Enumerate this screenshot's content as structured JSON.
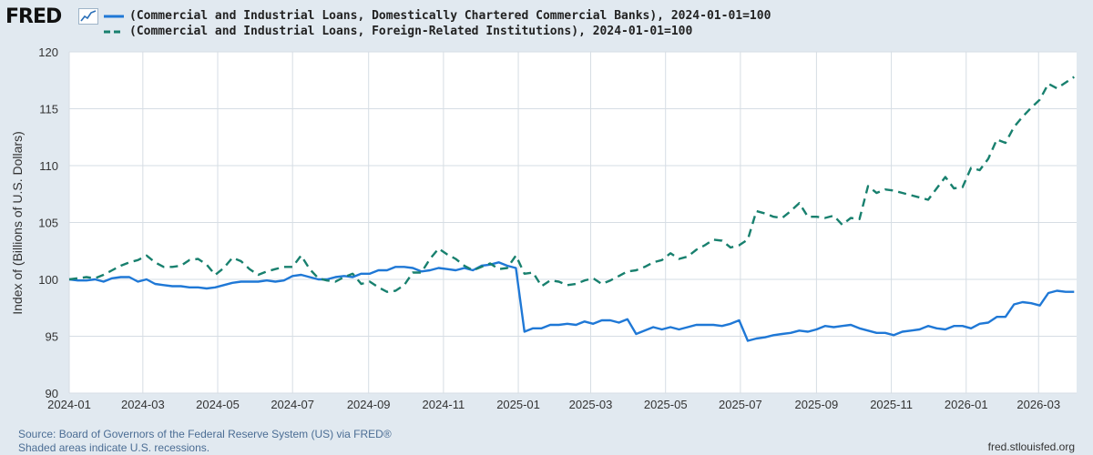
{
  "brand": {
    "name": "FRED"
  },
  "chart_data": {
    "type": "line",
    "title": "",
    "xlabel": "",
    "ylabel": "Index of (Billions of U.S. Dollars)",
    "ylim": [
      90,
      120
    ],
    "xlim": [
      "2024-01-01",
      "2026-04-01"
    ],
    "yticks": [
      "90",
      "95",
      "100",
      "105",
      "110",
      "115",
      "120"
    ],
    "xticks": [
      {
        "label": "2024-01",
        "date": "2024-01-01"
      },
      {
        "label": "2024-03",
        "date": "2024-03-01"
      },
      {
        "label": "2024-05",
        "date": "2024-05-01"
      },
      {
        "label": "2024-07",
        "date": "2024-07-01"
      },
      {
        "label": "2024-09",
        "date": "2024-09-01"
      },
      {
        "label": "2024-11",
        "date": "2024-11-01"
      },
      {
        "label": "2025-01",
        "date": "2025-01-01"
      },
      {
        "label": "2025-03",
        "date": "2025-03-01"
      },
      {
        "label": "2025-05",
        "date": "2025-05-01"
      },
      {
        "label": "2025-07",
        "date": "2025-07-01"
      },
      {
        "label": "2025-09",
        "date": "2025-09-01"
      },
      {
        "label": "2025-11",
        "date": "2025-11-01"
      },
      {
        "label": "2026-01",
        "date": "2026-01-01"
      },
      {
        "label": "2026-03",
        "date": "2026-03-01"
      }
    ],
    "grid": true,
    "legend_position": "top",
    "series": [
      {
        "name": "(Commercial and Industrial Loans, Domestically Chartered Commercial Banks), 2024-01-01=100",
        "color": "#1f78d6",
        "style": "solid",
        "points": [
          [
            "2024-01-01",
            100.0
          ],
          [
            "2024-01-08",
            99.9
          ],
          [
            "2024-01-15",
            99.9
          ],
          [
            "2024-01-22",
            100.0
          ],
          [
            "2024-01-29",
            99.8
          ],
          [
            "2024-02-05",
            100.1
          ],
          [
            "2024-02-12",
            100.2
          ],
          [
            "2024-02-19",
            100.2
          ],
          [
            "2024-02-26",
            99.8
          ],
          [
            "2024-03-04",
            100.0
          ],
          [
            "2024-03-11",
            99.6
          ],
          [
            "2024-03-18",
            99.5
          ],
          [
            "2024-03-25",
            99.4
          ],
          [
            "2024-04-01",
            99.4
          ],
          [
            "2024-04-08",
            99.3
          ],
          [
            "2024-04-15",
            99.3
          ],
          [
            "2024-04-22",
            99.2
          ],
          [
            "2024-04-29",
            99.3
          ],
          [
            "2024-05-06",
            99.5
          ],
          [
            "2024-05-13",
            99.7
          ],
          [
            "2024-05-20",
            99.8
          ],
          [
            "2024-05-27",
            99.8
          ],
          [
            "2024-06-03",
            99.8
          ],
          [
            "2024-06-10",
            99.9
          ],
          [
            "2024-06-17",
            99.8
          ],
          [
            "2024-06-24",
            99.9
          ],
          [
            "2024-07-01",
            100.3
          ],
          [
            "2024-07-08",
            100.4
          ],
          [
            "2024-07-15",
            100.2
          ],
          [
            "2024-07-22",
            100.0
          ],
          [
            "2024-07-29",
            100.0
          ],
          [
            "2024-08-05",
            100.2
          ],
          [
            "2024-08-12",
            100.3
          ],
          [
            "2024-08-19",
            100.2
          ],
          [
            "2024-08-26",
            100.5
          ],
          [
            "2024-09-02",
            100.5
          ],
          [
            "2024-09-09",
            100.8
          ],
          [
            "2024-09-16",
            100.8
          ],
          [
            "2024-09-23",
            101.1
          ],
          [
            "2024-09-30",
            101.1
          ],
          [
            "2024-10-07",
            101.0
          ],
          [
            "2024-10-14",
            100.7
          ],
          [
            "2024-10-21",
            100.8
          ],
          [
            "2024-10-28",
            101.0
          ],
          [
            "2024-11-04",
            100.9
          ],
          [
            "2024-11-11",
            100.8
          ],
          [
            "2024-11-18",
            101.0
          ],
          [
            "2024-11-25",
            100.8
          ],
          [
            "2024-12-02",
            101.2
          ],
          [
            "2024-12-09",
            101.3
          ],
          [
            "2024-12-16",
            101.5
          ],
          [
            "2024-12-23",
            101.2
          ],
          [
            "2024-12-30",
            101.0
          ],
          [
            "2025-01-06",
            95.4
          ],
          [
            "2025-01-13",
            95.7
          ],
          [
            "2025-01-20",
            95.7
          ],
          [
            "2025-01-27",
            96.0
          ],
          [
            "2025-02-03",
            96.0
          ],
          [
            "2025-02-10",
            96.1
          ],
          [
            "2025-02-17",
            96.0
          ],
          [
            "2025-02-24",
            96.3
          ],
          [
            "2025-03-03",
            96.1
          ],
          [
            "2025-03-10",
            96.4
          ],
          [
            "2025-03-17",
            96.4
          ],
          [
            "2025-03-24",
            96.2
          ],
          [
            "2025-03-31",
            96.5
          ],
          [
            "2025-04-07",
            95.2
          ],
          [
            "2025-04-14",
            95.5
          ],
          [
            "2025-04-21",
            95.8
          ],
          [
            "2025-04-28",
            95.6
          ],
          [
            "2025-05-05",
            95.8
          ],
          [
            "2025-05-12",
            95.6
          ],
          [
            "2025-05-19",
            95.8
          ],
          [
            "2025-05-26",
            96.0
          ],
          [
            "2025-06-02",
            96.0
          ],
          [
            "2025-06-09",
            96.0
          ],
          [
            "2025-06-16",
            95.9
          ],
          [
            "2025-06-23",
            96.1
          ],
          [
            "2025-06-30",
            96.4
          ],
          [
            "2025-07-07",
            94.6
          ],
          [
            "2025-07-14",
            94.8
          ],
          [
            "2025-07-21",
            94.9
          ],
          [
            "2025-07-28",
            95.1
          ],
          [
            "2025-08-04",
            95.2
          ],
          [
            "2025-08-11",
            95.3
          ],
          [
            "2025-08-18",
            95.5
          ],
          [
            "2025-08-25",
            95.4
          ],
          [
            "2025-09-01",
            95.6
          ],
          [
            "2025-09-08",
            95.9
          ],
          [
            "2025-09-15",
            95.8
          ],
          [
            "2025-09-22",
            95.9
          ],
          [
            "2025-09-29",
            96.0
          ],
          [
            "2025-10-06",
            95.7
          ],
          [
            "2025-10-13",
            95.5
          ],
          [
            "2025-10-20",
            95.3
          ],
          [
            "2025-10-27",
            95.3
          ],
          [
            "2025-11-03",
            95.1
          ],
          [
            "2025-11-10",
            95.4
          ],
          [
            "2025-11-17",
            95.5
          ],
          [
            "2025-11-24",
            95.6
          ],
          [
            "2025-12-01",
            95.9
          ],
          [
            "2025-12-08",
            95.7
          ],
          [
            "2025-12-15",
            95.6
          ],
          [
            "2025-12-22",
            95.9
          ],
          [
            "2025-12-29",
            95.9
          ],
          [
            "2026-01-05",
            95.7
          ],
          [
            "2026-01-12",
            96.1
          ],
          [
            "2026-01-19",
            96.2
          ],
          [
            "2026-01-26",
            96.7
          ],
          [
            "2026-02-02",
            96.7
          ],
          [
            "2026-02-09",
            97.8
          ],
          [
            "2026-02-16",
            98.0
          ],
          [
            "2026-02-23",
            97.9
          ],
          [
            "2026-03-02",
            97.7
          ],
          [
            "2026-03-09",
            98.8
          ],
          [
            "2026-03-16",
            99.0
          ],
          [
            "2026-03-23",
            98.9
          ],
          [
            "2026-03-30",
            98.9
          ]
        ]
      },
      {
        "name": "(Commercial and Industrial Loans, Foreign-Related Institutions), 2024-01-01=100",
        "color": "#18806e",
        "style": "dashed",
        "points": [
          [
            "2024-01-01",
            100.0
          ],
          [
            "2024-01-08",
            100.1
          ],
          [
            "2024-01-15",
            100.2
          ],
          [
            "2024-01-22",
            100.1
          ],
          [
            "2024-01-29",
            100.4
          ],
          [
            "2024-02-05",
            100.8
          ],
          [
            "2024-02-12",
            101.2
          ],
          [
            "2024-02-19",
            101.5
          ],
          [
            "2024-02-26",
            101.7
          ],
          [
            "2024-03-04",
            102.1
          ],
          [
            "2024-03-11",
            101.5
          ],
          [
            "2024-03-18",
            101.1
          ],
          [
            "2024-03-25",
            101.1
          ],
          [
            "2024-04-01",
            101.2
          ],
          [
            "2024-04-08",
            101.7
          ],
          [
            "2024-04-15",
            101.8
          ],
          [
            "2024-04-22",
            101.3
          ],
          [
            "2024-04-29",
            100.4
          ],
          [
            "2024-05-06",
            101.0
          ],
          [
            "2024-05-13",
            101.9
          ],
          [
            "2024-05-20",
            101.6
          ],
          [
            "2024-05-27",
            100.9
          ],
          [
            "2024-06-03",
            100.4
          ],
          [
            "2024-06-10",
            100.7
          ],
          [
            "2024-06-17",
            100.9
          ],
          [
            "2024-06-24",
            101.1
          ],
          [
            "2024-07-01",
            101.1
          ],
          [
            "2024-07-08",
            102.1
          ],
          [
            "2024-07-15",
            100.9
          ],
          [
            "2024-07-22",
            100.1
          ],
          [
            "2024-07-29",
            99.9
          ],
          [
            "2024-08-05",
            99.8
          ],
          [
            "2024-08-12",
            100.2
          ],
          [
            "2024-08-19",
            100.5
          ],
          [
            "2024-08-26",
            99.6
          ],
          [
            "2024-09-02",
            99.8
          ],
          [
            "2024-09-09",
            99.3
          ],
          [
            "2024-09-16",
            98.9
          ],
          [
            "2024-09-23",
            99.0
          ],
          [
            "2024-09-30",
            99.5
          ],
          [
            "2024-10-07",
            100.6
          ],
          [
            "2024-10-14",
            100.6
          ],
          [
            "2024-10-21",
            101.8
          ],
          [
            "2024-10-28",
            102.7
          ],
          [
            "2024-11-04",
            102.2
          ],
          [
            "2024-11-11",
            101.8
          ],
          [
            "2024-11-18",
            101.2
          ],
          [
            "2024-11-25",
            100.8
          ],
          [
            "2024-12-02",
            101.1
          ],
          [
            "2024-12-09",
            101.4
          ],
          [
            "2024-12-16",
            100.9
          ],
          [
            "2024-12-23",
            101.0
          ],
          [
            "2024-12-30",
            102.1
          ],
          [
            "2025-01-06",
            100.5
          ],
          [
            "2025-01-13",
            100.6
          ],
          [
            "2025-01-20",
            99.4
          ],
          [
            "2025-01-27",
            99.9
          ],
          [
            "2025-02-03",
            99.8
          ],
          [
            "2025-02-10",
            99.5
          ],
          [
            "2025-02-17",
            99.6
          ],
          [
            "2025-02-24",
            99.9
          ],
          [
            "2025-03-03",
            100.1
          ],
          [
            "2025-03-10",
            99.6
          ],
          [
            "2025-03-17",
            99.9
          ],
          [
            "2025-03-24",
            100.3
          ],
          [
            "2025-03-31",
            100.7
          ],
          [
            "2025-04-07",
            100.8
          ],
          [
            "2025-04-14",
            101.1
          ],
          [
            "2025-04-21",
            101.5
          ],
          [
            "2025-04-28",
            101.7
          ],
          [
            "2025-05-05",
            102.3
          ],
          [
            "2025-05-12",
            101.8
          ],
          [
            "2025-05-19",
            102.0
          ],
          [
            "2025-05-26",
            102.6
          ],
          [
            "2025-06-02",
            103.0
          ],
          [
            "2025-06-09",
            103.5
          ],
          [
            "2025-06-16",
            103.4
          ],
          [
            "2025-06-23",
            102.8
          ],
          [
            "2025-06-30",
            103.0
          ],
          [
            "2025-07-07",
            103.5
          ],
          [
            "2025-07-14",
            106.0
          ],
          [
            "2025-07-21",
            105.8
          ],
          [
            "2025-07-28",
            105.5
          ],
          [
            "2025-08-04",
            105.4
          ],
          [
            "2025-08-11",
            106.0
          ],
          [
            "2025-08-18",
            106.7
          ],
          [
            "2025-08-25",
            105.5
          ],
          [
            "2025-09-01",
            105.5
          ],
          [
            "2025-09-08",
            105.4
          ],
          [
            "2025-09-15",
            105.6
          ],
          [
            "2025-09-22",
            104.8
          ],
          [
            "2025-09-29",
            105.4
          ],
          [
            "2025-10-06",
            105.3
          ],
          [
            "2025-10-13",
            108.2
          ],
          [
            "2025-10-20",
            107.6
          ],
          [
            "2025-10-27",
            107.9
          ],
          [
            "2025-11-03",
            107.8
          ],
          [
            "2025-11-10",
            107.6
          ],
          [
            "2025-11-17",
            107.4
          ],
          [
            "2025-11-24",
            107.2
          ],
          [
            "2025-12-01",
            107.0
          ],
          [
            "2025-12-08",
            108.0
          ],
          [
            "2025-12-15",
            109.0
          ],
          [
            "2025-12-22",
            108.0
          ],
          [
            "2025-12-29",
            108.1
          ],
          [
            "2026-01-05",
            109.8
          ],
          [
            "2026-01-12",
            109.6
          ],
          [
            "2026-01-19",
            110.6
          ],
          [
            "2026-01-26",
            112.3
          ],
          [
            "2026-02-02",
            112.0
          ],
          [
            "2026-02-09",
            113.4
          ],
          [
            "2026-02-16",
            114.3
          ],
          [
            "2026-02-23",
            115.1
          ],
          [
            "2026-03-02",
            115.8
          ],
          [
            "2026-03-09",
            117.2
          ],
          [
            "2026-03-16",
            116.8
          ],
          [
            "2026-03-23",
            117.3
          ],
          [
            "2026-03-30",
            117.8
          ]
        ]
      }
    ]
  },
  "footer": {
    "source": "Source: Board of Governors of the Federal Reserve System (US) via FRED®",
    "recessions": "Shaded areas indicate U.S. recessions.",
    "url": "fred.stlouisfed.org"
  }
}
